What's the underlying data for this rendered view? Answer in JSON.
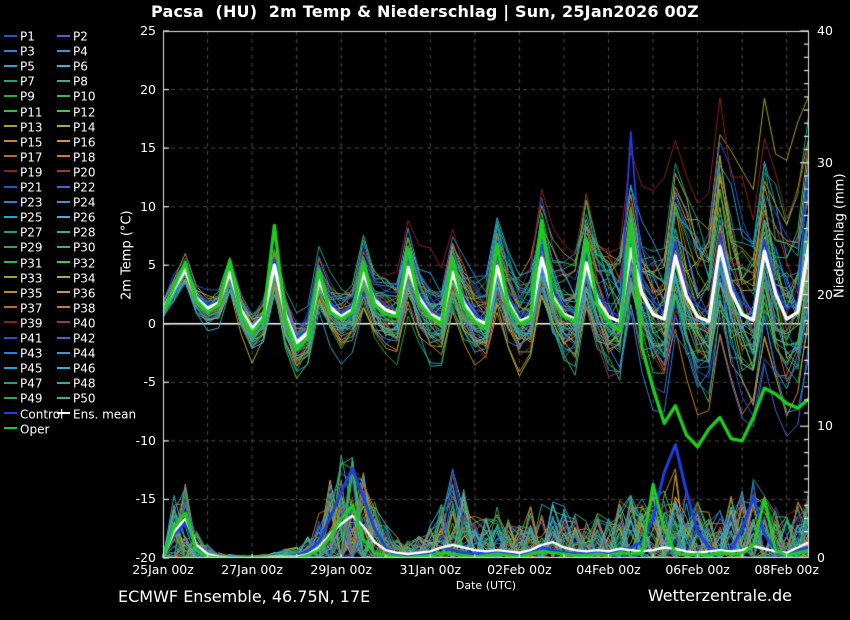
{
  "title": "Pacsa  (HU)  2m Temp & Niederschlag | Sun, 25Jan2026 00Z",
  "footer": {
    "left": "ECMWF Ensemble, 46.75N, 17E",
    "right": "Wetterzentrale.de"
  },
  "legend": {
    "member_prefix": "P",
    "member_count": 50,
    "control_label": "Control",
    "mean_label": "Ens. mean",
    "oper_label": "Oper",
    "pair_palette": [
      "#2353cf",
      "#2d7fd6",
      "#27a6cc",
      "#1fa182",
      "#28a852",
      "#2cc22c",
      "#a89f28",
      "#c18d26",
      "#c2691c",
      "#8c2415"
    ],
    "control_color": "#1f3fe0",
    "mean_color": "#ffffff",
    "oper_color": "#1ecc1e"
  },
  "chart_data": {
    "type": "line",
    "title": "Pacsa  (HU)  2m Temp & Niederschlag | Sun, 25Jan2026 00Z",
    "xlabel": "Date (UTC)",
    "ylabel_left": "2m Temp (°C)",
    "ylabel_right": "Niederschlag (mm)",
    "ylim_left": [
      -20,
      25
    ],
    "ylim_right": [
      0,
      40
    ],
    "left_ticks": [
      25,
      20,
      15,
      10,
      5,
      0,
      -5,
      -10,
      -15,
      -20
    ],
    "right_ticks": [
      0,
      10,
      20,
      30,
      40
    ],
    "x_ticks": [
      {
        "label": "25Jan 00z",
        "day": 0
      },
      {
        "label": "27Jan 00z",
        "day": 2
      },
      {
        "label": "29Jan 00z",
        "day": 4
      },
      {
        "label": "31Jan 00z",
        "day": 6
      },
      {
        "label": "02Feb 00z",
        "day": 8
      },
      {
        "label": "04Feb 00z",
        "day": 10
      },
      {
        "label": "06Feb 00z",
        "day": 12
      },
      {
        "label": "08Feb 00z",
        "day": 14
      }
    ],
    "step_hours": 6,
    "x_total_days": 14.5,
    "grid": {
      "h_dashed_temps": [
        20,
        15,
        10,
        5,
        -5,
        -10,
        -15
      ],
      "zero_line_temp": 0,
      "v_dashed_every_days": 1
    },
    "series": {
      "temp_mean": [
        1.2,
        3.0,
        4.6,
        2.2,
        1.3,
        1.8,
        4.4,
        1.2,
        -0.4,
        0.6,
        5.0,
        0.8,
        -1.6,
        -0.8,
        3.8,
        1.4,
        0.6,
        1.2,
        4.3,
        2.0,
        1.2,
        0.8,
        4.8,
        2.2,
        0.8,
        0.3,
        4.4,
        1.8,
        0.4,
        0.0,
        4.9,
        1.9,
        0.2,
        0.6,
        5.6,
        2.3,
        0.8,
        0.4,
        5.2,
        2.1,
        0.6,
        0.2,
        6.4,
        2.6,
        0.8,
        0.4,
        5.8,
        2.4,
        0.6,
        0.2,
        6.6,
        2.8,
        0.8,
        0.3,
        6.2,
        2.6,
        0.4,
        1.0,
        6.8
      ],
      "temp_oper": [
        1.0,
        3.2,
        5.2,
        2.0,
        1.0,
        1.6,
        5.4,
        0.8,
        -0.8,
        0.4,
        8.4,
        0.4,
        -2.2,
        -1.2,
        4.6,
        1.0,
        0.4,
        1.0,
        5.2,
        1.6,
        0.8,
        0.6,
        6.4,
        1.8,
        0.6,
        0.0,
        5.6,
        1.4,
        0.2,
        -0.4,
        6.8,
        1.6,
        0.0,
        0.4,
        8.8,
        2.0,
        0.6,
        0.2,
        7.2,
        1.6,
        0.2,
        -0.6,
        8.6,
        -2.0,
        -5.5,
        -8.5,
        -7.0,
        -9.5,
        -10.5,
        -9.0,
        -8.0,
        -9.8,
        -10.0,
        -8.0,
        -5.5,
        -6.0,
        -6.8,
        -7.2,
        -6.4
      ],
      "temp_control": [
        1.4,
        2.8,
        4.4,
        2.4,
        1.6,
        2.0,
        4.8,
        1.4,
        -0.2,
        0.8,
        5.6,
        1.2,
        -1.2,
        -0.4,
        4.2,
        1.8,
        1.0,
        1.6,
        5.0,
        2.4,
        1.6,
        1.2,
        5.6,
        2.6,
        1.2,
        0.6,
        5.2,
        2.2,
        0.8,
        0.4,
        5.8,
        2.4,
        0.6,
        1.0,
        6.8,
        3.0,
        1.4,
        0.8,
        6.0,
        2.8,
        1.2,
        0.6,
        16.4,
        4.0,
        2.0,
        1.0,
        7.0,
        3.0,
        1.6,
        0.8,
        7.6,
        3.4,
        1.8,
        1.0,
        7.2,
        3.2,
        1.2,
        2.0,
        14.0
      ],
      "precip_mean": [
        0,
        2.0,
        3.0,
        1.0,
        0.3,
        0.1,
        0,
        0,
        0,
        0,
        0.1,
        0.1,
        0.1,
        0.3,
        0.8,
        1.8,
        2.6,
        3.2,
        2.4,
        1.2,
        0.6,
        0.4,
        0.3,
        0.4,
        0.5,
        0.8,
        1.0,
        0.8,
        0.6,
        0.5,
        0.6,
        0.5,
        0.4,
        0.6,
        1.0,
        1.2,
        0.8,
        0.6,
        0.5,
        0.6,
        0.5,
        0.7,
        0.6,
        0.5,
        0.6,
        0.8,
        0.7,
        0.5,
        0.4,
        0.5,
        0.6,
        0.5,
        0.6,
        0.9,
        0.7,
        0.5,
        0.4,
        0.8,
        1.2
      ],
      "precip_oper": [
        0,
        2.4,
        3.4,
        0.6,
        0.1,
        0,
        0,
        0,
        0,
        0,
        0,
        0,
        0,
        0.2,
        0.6,
        1.6,
        3.0,
        4.0,
        1.4,
        0.4,
        0.2,
        0.1,
        0,
        0.1,
        0.2,
        0.4,
        0.3,
        0.2,
        0.1,
        0.2,
        0.3,
        0.2,
        0.1,
        0.3,
        0.5,
        0.4,
        0.3,
        0.2,
        0.2,
        0.3,
        0.2,
        0.4,
        0.3,
        0.4,
        5.6,
        2.2,
        0.4,
        0.2,
        0.3,
        0.2,
        0.4,
        0.3,
        0.3,
        1.0,
        4.4,
        0.6,
        0.2,
        0.4,
        0.6
      ],
      "precip_control": [
        0,
        1.8,
        2.6,
        0.8,
        0.2,
        0,
        0,
        0,
        0,
        0,
        0,
        0.1,
        0.2,
        0.5,
        1.2,
        3.0,
        5.0,
        6.8,
        4.6,
        2.2,
        0.8,
        0.3,
        0.2,
        0.3,
        0.4,
        0.8,
        0.6,
        0.4,
        0.3,
        0.4,
        0.5,
        0.3,
        0.2,
        0.5,
        0.8,
        0.6,
        0.4,
        0.3,
        0.4,
        0.5,
        0.3,
        0.6,
        0.8,
        1.2,
        3.0,
        6.5,
        8.6,
        5.0,
        2.0,
        0.8,
        0.5,
        0.6,
        2.2,
        4.6,
        1.8,
        0.6,
        0.4,
        0.6,
        0.8
      ],
      "temp_spread": [
        1.2,
        1.4,
        1.6,
        1.6,
        1.8,
        1.8,
        2.0,
        2.0,
        2.2,
        2.2,
        2.4,
        2.4,
        2.6,
        2.6,
        2.8,
        2.8,
        3.0,
        3.0,
        3.2,
        3.2,
        3.4,
        3.4,
        3.6,
        3.6,
        3.8,
        3.8,
        4.0,
        4.0,
        4.2,
        4.2,
        4.5,
        4.5,
        4.8,
        4.8,
        5.0,
        5.0,
        5.2,
        5.2,
        5.5,
        5.5,
        5.8,
        5.8,
        6.2,
        6.2,
        6.5,
        6.5,
        6.8,
        6.8,
        7.0,
        7.0,
        7.2,
        7.2,
        7.4,
        7.4,
        7.6,
        7.6,
        7.8,
        8.0,
        8.2
      ],
      "precip_envelope": [
        0.5,
        5.5,
        6.5,
        2.5,
        1.2,
        0.5,
        0.3,
        0.2,
        0.2,
        0.3,
        0.5,
        0.8,
        1.0,
        2.0,
        4.0,
        7.0,
        9.0,
        9.5,
        7.5,
        5.0,
        3.0,
        2.0,
        1.5,
        2.0,
        3.0,
        5.0,
        8.5,
        6.0,
        4.0,
        3.5,
        4.5,
        3.5,
        3.0,
        4.5,
        5.5,
        5.0,
        4.5,
        4.0,
        3.5,
        4.0,
        3.5,
        5.0,
        6.0,
        5.5,
        6.5,
        7.5,
        8.0,
        6.0,
        5.0,
        4.0,
        4.5,
        5.5,
        6.0,
        7.0,
        5.5,
        4.5,
        4.0,
        5.0,
        6.0
      ]
    },
    "ensemble": {
      "count": 50,
      "seed": 20260125
    }
  }
}
